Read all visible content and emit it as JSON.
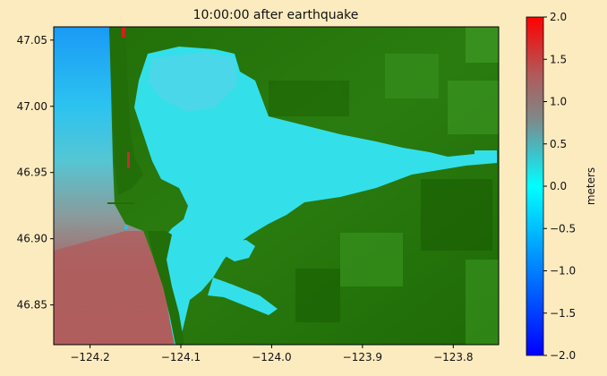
{
  "title": "10:00:00 after earthquake",
  "map": {
    "x_ticks": [
      -124.2,
      -124.1,
      -124.0,
      -123.9,
      -123.8
    ],
    "x_tick_labels": [
      "−124.2",
      "−124.1",
      "−124.0",
      "−123.9",
      "−123.8"
    ],
    "y_ticks": [
      46.85,
      46.9,
      46.95,
      47.0,
      47.05
    ],
    "y_tick_labels": [
      "46.85",
      "46.90",
      "46.95",
      "47.00",
      "47.05"
    ],
    "xlim": [
      -124.24,
      -123.75
    ],
    "ylim": [
      46.82,
      47.06
    ],
    "colors": {
      "land_dark": "#175a00",
      "land_mid": "#2b7a10",
      "land_light": "#3f9a20",
      "water_cyan": "#33e0ea",
      "ocean_blue": "#1e9cf5",
      "ocean_red": "#b06060"
    }
  },
  "colorbar": {
    "label": "meters",
    "range": [
      -2.0,
      2.0
    ],
    "ticks": [
      2.0,
      1.5,
      1.0,
      0.5,
      0.0,
      -0.5,
      -1.0,
      -1.5,
      -2.0
    ],
    "tick_labels": [
      "2.0",
      "1.5",
      "1.0",
      "0.5",
      "0.0",
      "−0.5",
      "−1.0",
      "−1.5",
      "−2.0"
    ],
    "stops": [
      "#ff0000",
      "#a06868",
      "#7a8a8a",
      "#30c8d0",
      "#00ffff",
      "#0098ff",
      "#0000ff"
    ]
  }
}
